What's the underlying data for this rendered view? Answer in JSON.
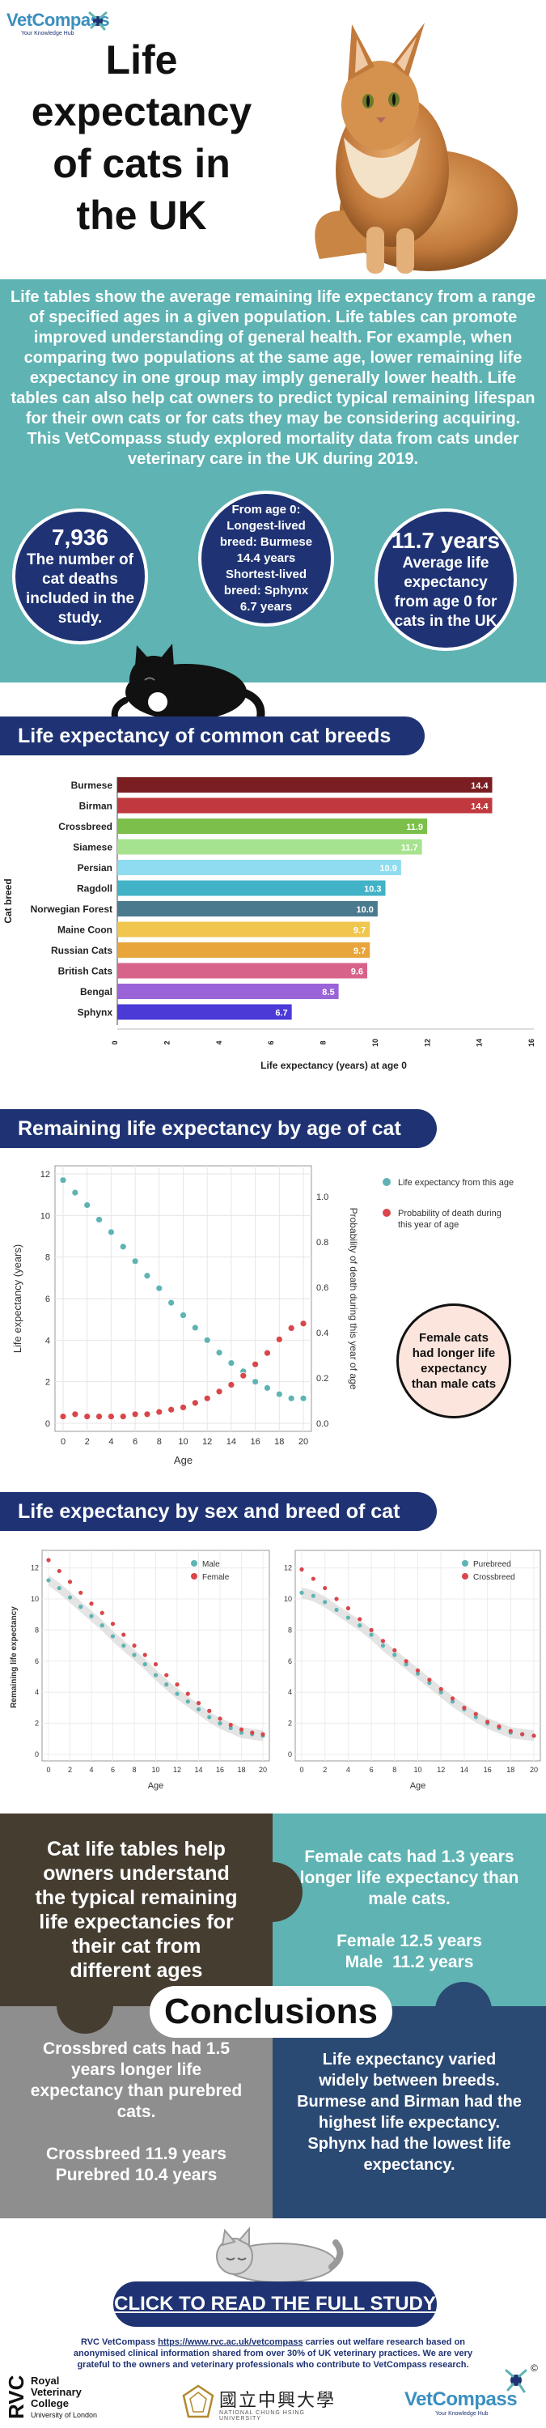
{
  "logo": {
    "brand": "VetCompass",
    "tagline": "Your Knowledge Hub"
  },
  "header": {
    "title": "Life expectancy of cats in the UK"
  },
  "intro": {
    "paragraph1": "Life tables show the average remaining life expectancy from a range of specified ages in a given population. Life tables can promote improved understanding of general health. For example, when comparing two populations at the same age, lower remaining life expectancy in one group may imply generally lower health. Life tables can also help cat owners to predict typical remaining lifespan for their own cats or for cats they may be considering acquiring.",
    "paragraph2": "This VetCompass study explored mortality data from cats under veterinary care in the UK during 2019."
  },
  "stats": [
    {
      "value": "7,936",
      "text": "The number of cat deaths included in the study."
    },
    {
      "value": "",
      "text": "From age 0: Longest-lived breed: Burmese 14.4 years Shortest-lived breed: Sphynx 6.7 years"
    },
    {
      "value": "11.7 years",
      "text": "Average life expectancy from age 0 for cats in the UK"
    }
  ],
  "sections": {
    "breeds": "Life expectancy of common cat breeds",
    "age": "Remaining life expectancy by age of cat",
    "sex_breed": "Life expectancy by sex and breed of cat"
  },
  "colors": {
    "navy": "#1f3374",
    "teal": "#5fb3b3",
    "red": "#d9464a"
  },
  "chart_data": [
    {
      "type": "bar",
      "orientation": "horizontal",
      "categories": [
        "Burmese",
        "Birman",
        "Crossbreed",
        "Siamese",
        "Persian",
        "Ragdoll",
        "Norwegian Forest",
        "Maine Coon",
        "Russian Cats",
        "British Cats",
        "Bengal",
        "Sphynx"
      ],
      "values": [
        14.4,
        14.4,
        11.9,
        11.7,
        10.9,
        10.3,
        10.0,
        9.7,
        9.7,
        9.6,
        8.5,
        6.7
      ],
      "value_labels": [
        "14.4",
        "14.4",
        "11.9",
        "11.7",
        "10.9",
        "10.3",
        "10.0",
        "9.7",
        "9.7",
        "9.6",
        "8.5",
        "6.7"
      ],
      "bar_colors": [
        "#7a1e22",
        "#c0393e",
        "#7cbf4a",
        "#a7e38f",
        "#8fdcf0",
        "#42b2c7",
        "#4a7a8e",
        "#f0c64e",
        "#e8a53b",
        "#d8638a",
        "#9b63d8",
        "#4b3ad6"
      ],
      "xlabel": "Life expectancy (years) at age 0",
      "ylabel": "Cat breed",
      "xlim": [
        0,
        16
      ],
      "xticks": [
        0,
        2,
        4,
        6,
        8,
        10,
        12,
        14,
        16
      ]
    },
    {
      "type": "scatter",
      "x": [
        0,
        1,
        2,
        3,
        4,
        5,
        6,
        7,
        8,
        9,
        10,
        11,
        12,
        13,
        14,
        15,
        16,
        17,
        18,
        19,
        20
      ],
      "series": [
        {
          "name": "Life expectancy from this age",
          "axis": "left",
          "color": "#5fb3b3",
          "values": [
            11.7,
            11.1,
            10.5,
            9.8,
            9.2,
            8.5,
            7.8,
            7.1,
            6.5,
            5.8,
            5.2,
            4.6,
            4.0,
            3.4,
            2.9,
            2.5,
            2.0,
            1.7,
            1.4,
            1.2,
            1.2
          ]
        },
        {
          "name": "Probability of death during this year of age",
          "axis": "right",
          "color": "#d9464a",
          "values": [
            0.03,
            0.04,
            0.03,
            0.03,
            0.03,
            0.03,
            0.04,
            0.04,
            0.05,
            0.06,
            0.07,
            0.09,
            0.11,
            0.14,
            0.17,
            0.21,
            0.26,
            0.31,
            0.37,
            0.42,
            0.44
          ]
        }
      ],
      "xlabel": "Age",
      "ylabel": "Life expectancy (years)",
      "y2label": "Probability of death during this year of age",
      "xlim": [
        0,
        20
      ],
      "ylim": [
        0,
        12
      ],
      "y2lim": [
        0,
        1.1
      ],
      "xticks": [
        0,
        2,
        4,
        6,
        8,
        10,
        12,
        14,
        16,
        18,
        20
      ],
      "yticks": [
        0,
        2,
        4,
        6,
        8,
        10,
        12
      ],
      "y2ticks": [
        "0.0",
        "0.2",
        "0.4",
        "0.6",
        "0.8",
        "1.0"
      ],
      "legend_position": "top-right",
      "annotation": "Female cats had longer life expectancy than male cats"
    },
    {
      "type": "scatter",
      "x": [
        0,
        1,
        2,
        3,
        4,
        5,
        6,
        7,
        8,
        9,
        10,
        11,
        12,
        13,
        14,
        15,
        16,
        17,
        18,
        19,
        20
      ],
      "series": [
        {
          "name": "Male",
          "color": "#5fb3b3",
          "values": [
            11.2,
            10.7,
            10.1,
            9.5,
            8.9,
            8.3,
            7.6,
            7.0,
            6.4,
            5.8,
            5.1,
            4.5,
            3.9,
            3.4,
            2.9,
            2.4,
            2.0,
            1.7,
            1.4,
            1.3,
            1.2
          ]
        },
        {
          "name": "Female",
          "color": "#d9464a",
          "values": [
            12.5,
            11.8,
            11.1,
            10.4,
            9.7,
            9.1,
            8.4,
            7.7,
            7.0,
            6.4,
            5.8,
            5.1,
            4.5,
            3.9,
            3.3,
            2.8,
            2.3,
            1.9,
            1.6,
            1.4,
            1.3
          ]
        }
      ],
      "xlabel": "Age",
      "ylabel": "Remaining life expectancy",
      "xlim": [
        0,
        20
      ],
      "ylim": [
        0,
        12.5
      ],
      "xticks": [
        0,
        2,
        4,
        6,
        8,
        10,
        12,
        14,
        16,
        18,
        20
      ],
      "yticks": [
        0,
        2,
        4,
        6,
        8,
        10,
        12
      ],
      "legend_position": "top-right"
    },
    {
      "type": "scatter",
      "x": [
        0,
        1,
        2,
        3,
        4,
        5,
        6,
        7,
        8,
        9,
        10,
        11,
        12,
        13,
        14,
        15,
        16,
        17,
        18,
        19,
        20
      ],
      "series": [
        {
          "name": "Purebreed",
          "color": "#5fb3b3",
          "values": [
            10.4,
            10.2,
            9.8,
            9.3,
            8.8,
            8.3,
            7.7,
            7.0,
            6.4,
            5.8,
            5.2,
            4.6,
            4.0,
            3.4,
            2.9,
            2.4,
            2.0,
            1.7,
            1.4,
            1.3,
            1.2
          ]
        },
        {
          "name": "Crossbreed",
          "color": "#d9464a",
          "values": [
            11.9,
            11.3,
            10.7,
            10.0,
            9.4,
            8.7,
            8.0,
            7.3,
            6.7,
            6.0,
            5.4,
            4.8,
            4.2,
            3.6,
            3.0,
            2.6,
            2.1,
            1.8,
            1.5,
            1.3,
            1.2
          ]
        }
      ],
      "xlabel": "Age",
      "ylabel": "",
      "xlim": [
        0,
        20
      ],
      "ylim": [
        0,
        12.5
      ],
      "xticks": [
        0,
        2,
        4,
        6,
        8,
        10,
        12,
        14,
        16,
        18,
        20
      ],
      "yticks": [
        0,
        2,
        4,
        6,
        8,
        10,
        12
      ],
      "legend_position": "top-right"
    }
  ],
  "panels": {
    "top_left": "Cat life tables help owners understand the typical remaining life expectancies for their cat from different ages",
    "top_right_1": "Female cats had 1.3 years longer life expectancy than male cats.",
    "top_right_2": "Female 12.5 years",
    "top_right_3": "Male  11.2 years",
    "conclusions": "Conclusions",
    "bottom_left_1": "Crossbred cats had 1.5 years longer life expectancy than purebred cats.",
    "bottom_left_2": "Crossbreed 11.9 years",
    "bottom_left_3": "Purebred 10.4 years",
    "bottom_right": "Life expectancy varied widely between breeds. Burmese and Birman had the highest life expectancy. Sphynx had the lowest life expectancy."
  },
  "footer": {
    "cta": "CLICK TO READ THE FULL STUDY",
    "text_1": "RVC VetCompass ",
    "url": "https://www.rvc.ac.uk/vetcompass",
    "text_2": " carries out welfare research based on anonymised clinical information shared from over 30% of UK veterinary practices. We are very grateful to the owners and veterinary professionals who contribute to VetCompass research.",
    "rvc_line1": "Royal",
    "rvc_line2": "Veterinary",
    "rvc_line3": "College",
    "rvc_line4": "University of London",
    "rvc_mark": "RVC",
    "nchu": "國立中興大學",
    "nchu_en": "NATIONAL CHUNG HSING UNIVERSITY",
    "copyright": "©"
  }
}
